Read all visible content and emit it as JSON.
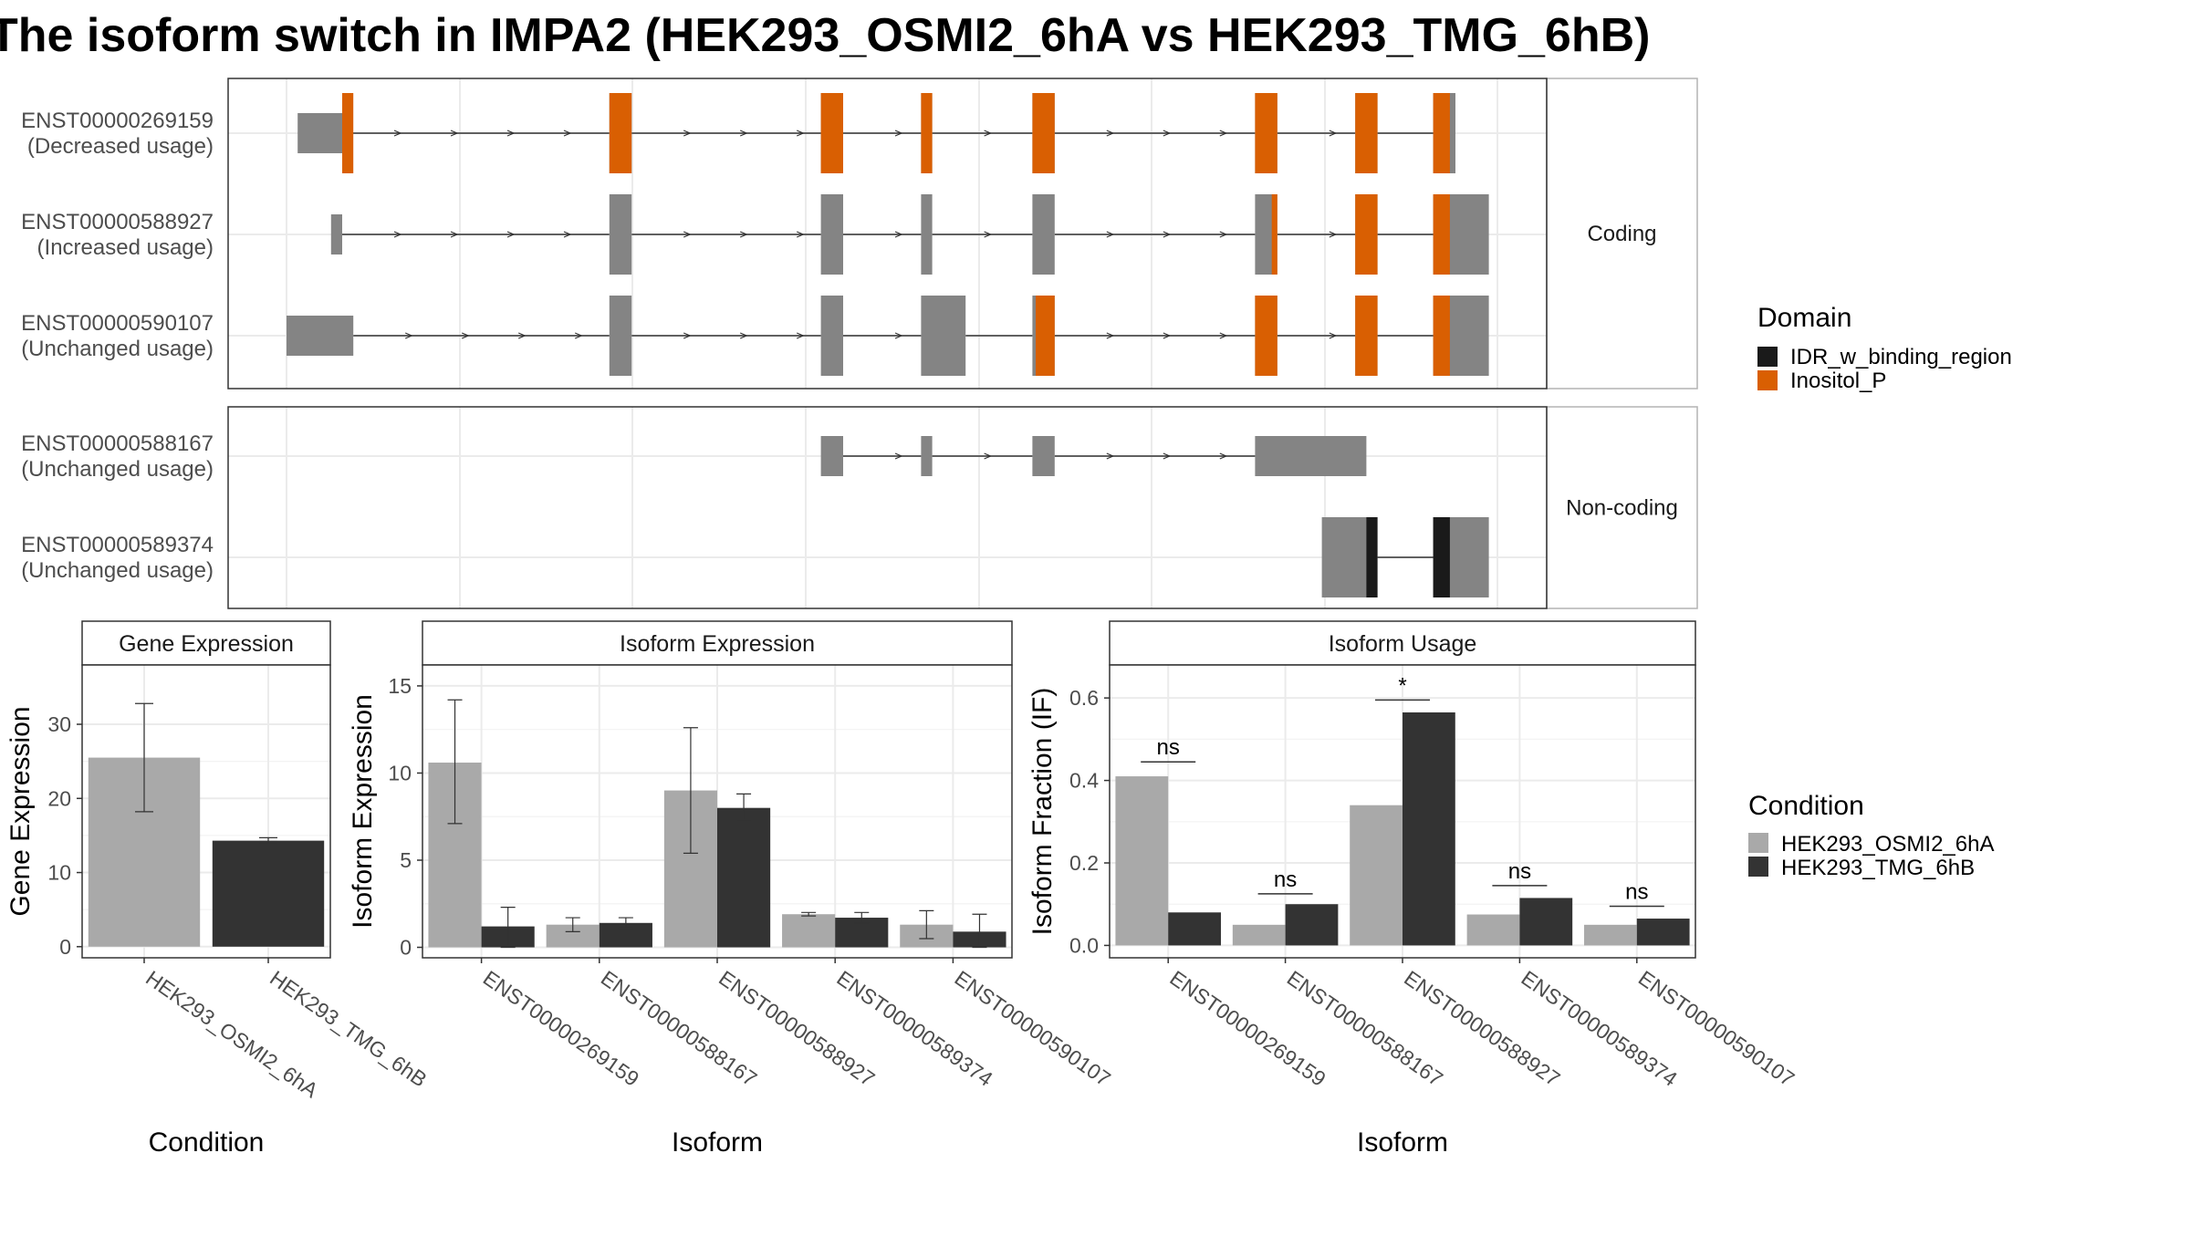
{
  "title": "The isoform switch in IMPA2 (HEK293_OSMI2_6hA vs HEK293_TMG_6hB)",
  "colors": {
    "exon": "#848484",
    "idr": "#1a1a1a",
    "inositol": "#d95f02",
    "cond_a": "#a9a9a9",
    "cond_b": "#333333",
    "strip_bg": "#ffffff",
    "grid": "#ebebeb"
  },
  "structure": {
    "facets": [
      {
        "label": "Coding",
        "transcripts": [
          {
            "id": "ENST00000269159",
            "usage": "(Decreased usage)",
            "exons": [
              [
                1,
                5
              ],
              [
                29,
                31
              ],
              [
                48,
                50
              ],
              [
                57,
                58
              ],
              [
                67,
                69
              ],
              [
                87,
                89
              ],
              [
                96,
                98
              ],
              [
                103,
                105
              ]
            ],
            "domains": [
              {
                "d": "Inositol_P",
                "s": 5,
                "e": 6
              },
              {
                "d": "Inositol_P",
                "s": 29,
                "e": 31
              },
              {
                "d": "Inositol_P",
                "s": 48,
                "e": 50
              },
              {
                "d": "Inositol_P",
                "s": 57,
                "e": 58
              },
              {
                "d": "Inositol_P",
                "s": 67,
                "e": 69
              },
              {
                "d": "Inositol_P",
                "s": 87,
                "e": 89
              },
              {
                "d": "Inositol_P",
                "s": 96,
                "e": 98
              },
              {
                "d": "Inositol_P",
                "s": 103,
                "e": 104.5
              }
            ]
          },
          {
            "id": "ENST00000588927",
            "usage": "(Increased usage)",
            "exons": [
              [
                4,
                5
              ],
              [
                29,
                31
              ],
              [
                48,
                50
              ],
              [
                57,
                58
              ],
              [
                67,
                69
              ],
              [
                87,
                89
              ],
              [
                96,
                98
              ],
              [
                103,
                108
              ]
            ],
            "domains": [
              {
                "d": "Inositol_P",
                "s": 88.5,
                "e": 89
              },
              {
                "d": "Inositol_P",
                "s": 96,
                "e": 98
              },
              {
                "d": "Inositol_P",
                "s": 103,
                "e": 104.5
              }
            ]
          },
          {
            "id": "ENST00000590107",
            "usage": "(Unchanged usage)",
            "exons": [
              [
                0,
                6
              ],
              [
                29,
                31
              ],
              [
                48,
                50
              ],
              [
                57,
                61
              ],
              [
                67,
                69
              ],
              [
                87,
                89
              ],
              [
                96,
                98
              ],
              [
                103,
                108
              ]
            ],
            "domains": [
              {
                "d": "Inositol_P",
                "s": 67.3,
                "e": 69
              },
              {
                "d": "Inositol_P",
                "s": 87,
                "e": 89
              },
              {
                "d": "Inositol_P",
                "s": 96,
                "e": 98
              },
              {
                "d": "Inositol_P",
                "s": 103,
                "e": 104.5
              }
            ]
          }
        ]
      },
      {
        "label": "Non-coding",
        "transcripts": [
          {
            "id": "ENST00000588167",
            "usage": "(Unchanged usage)",
            "exons": [
              [
                48,
                50
              ],
              [
                57,
                58
              ],
              [
                67,
                69
              ],
              [
                87,
                97
              ]
            ],
            "domains": []
          },
          {
            "id": "ENST00000589374",
            "usage": "(Unchanged usage)",
            "exons": [
              [
                93,
                98
              ],
              [
                103,
                108
              ]
            ],
            "domains": [
              {
                "d": "IDR_w_binding_region",
                "s": 97,
                "e": 98
              },
              {
                "d": "IDR_w_binding_region",
                "s": 103,
                "e": 104.5
              }
            ]
          }
        ]
      }
    ]
  },
  "domain_legend": {
    "title": "Domain",
    "items": [
      {
        "label": "IDR_w_binding_region",
        "color": "#1a1a1a"
      },
      {
        "label": "Inositol_P",
        "color": "#d95f02"
      }
    ]
  },
  "condition_legend": {
    "title": "Condition",
    "items": [
      {
        "label": "HEK293_OSMI2_6hA",
        "color": "#a9a9a9"
      },
      {
        "label": "HEK293_TMG_6hB",
        "color": "#333333"
      }
    ]
  },
  "chart_data": [
    {
      "type": "bar",
      "title": "Gene Expression",
      "xlabel": "Condition",
      "ylabel": "Gene Expression",
      "ylim": [
        -1.5,
        38
      ],
      "yticks": [
        0,
        10,
        20,
        30
      ],
      "categories": [
        "HEK293_OSMI2_6hA",
        "HEK293_TMG_6hB"
      ],
      "values": [
        25.5,
        14.3
      ],
      "errors": [
        [
          18.2,
          32.8
        ],
        [
          13.9,
          14.7
        ]
      ],
      "grid": true
    },
    {
      "type": "bar",
      "title": "Isoform Expression",
      "xlabel": "Isoform",
      "ylabel": "Isoform Expression",
      "ylim": [
        -0.6,
        16.2
      ],
      "yticks": [
        0,
        5,
        10,
        15
      ],
      "categories": [
        "ENST00000269159",
        "ENST00000588167",
        "ENST00000588927",
        "ENST00000589374",
        "ENST00000590107"
      ],
      "series": [
        {
          "name": "HEK293_OSMI2_6hA",
          "values": [
            10.6,
            1.3,
            9.0,
            1.9,
            1.3
          ],
          "errors": [
            [
              7.1,
              14.2
            ],
            [
              0.9,
              1.7
            ],
            [
              5.4,
              12.6
            ],
            [
              1.8,
              2.0
            ],
            [
              0.5,
              2.1
            ]
          ]
        },
        {
          "name": "HEK293_TMG_6hB",
          "values": [
            1.2,
            1.4,
            8.0,
            1.7,
            0.9
          ],
          "errors": [
            [
              0.0,
              2.3
            ],
            [
              1.1,
              1.7
            ],
            [
              7.3,
              8.8
            ],
            [
              1.4,
              2.0
            ],
            [
              0.0,
              1.9
            ]
          ]
        }
      ],
      "grid": true
    },
    {
      "type": "bar",
      "title": "Isoform Usage",
      "xlabel": "Isoform",
      "ylabel": "Isoform Fraction (IF)",
      "ylim": [
        -0.03,
        0.68
      ],
      "yticks": [
        "0.0",
        "0.2",
        "0.4",
        "0.6"
      ],
      "categories": [
        "ENST00000269159",
        "ENST00000588167",
        "ENST00000588927",
        "ENST00000589374",
        "ENST00000590107"
      ],
      "series": [
        {
          "name": "HEK293_OSMI2_6hA",
          "values": [
            0.41,
            0.05,
            0.34,
            0.075,
            0.05
          ]
        },
        {
          "name": "HEK293_TMG_6hB",
          "values": [
            0.08,
            0.1,
            0.565,
            0.115,
            0.065
          ]
        }
      ],
      "significance": [
        "ns",
        "ns",
        "*",
        "ns",
        "ns"
      ],
      "sig_levels": [
        0.445,
        0.125,
        0.595,
        0.145,
        0.095
      ],
      "grid": true
    }
  ]
}
